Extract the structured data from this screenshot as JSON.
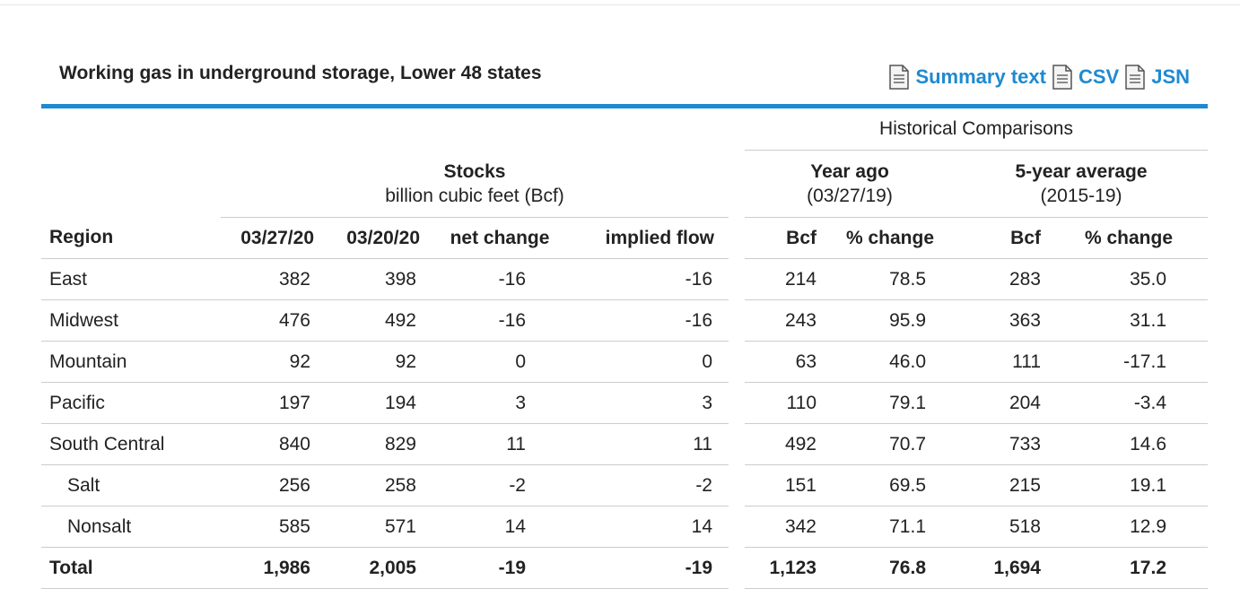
{
  "title": "Working gas in underground storage, Lower 48 states",
  "links": [
    {
      "label": "Summary text",
      "icon": "document-icon"
    },
    {
      "label": "CSV",
      "icon": "document-icon"
    },
    {
      "label": "JSN",
      "icon": "document-icon"
    }
  ],
  "colors": {
    "accent": "#1e8ad0",
    "rule": "#cccccc"
  },
  "table": {
    "historical_label": "Historical Comparisons",
    "stocks_title": "Stocks",
    "stocks_sub": "billion cubic feet (Bcf)",
    "yearago_title": "Year ago",
    "yearago_sub": "(03/27/19)",
    "fiveyr_title": "5-year average",
    "fiveyr_sub": "(2015-19)",
    "columns": [
      "Region",
      "03/27/20",
      "03/20/20",
      "net change",
      "implied flow",
      "Bcf",
      "% change",
      "Bcf",
      "% change"
    ],
    "rows": [
      [
        "East",
        "382",
        "398",
        "-16",
        "-16",
        "214",
        "78.5",
        "283",
        "35.0"
      ],
      [
        "Midwest",
        "476",
        "492",
        "-16",
        "-16",
        "243",
        "95.9",
        "363",
        "31.1"
      ],
      [
        "Mountain",
        "92",
        "92",
        "0",
        "0",
        "63",
        "46.0",
        "111",
        "-17.1"
      ],
      [
        "Pacific",
        "197",
        "194",
        "3",
        "3",
        "110",
        "79.1",
        "204",
        "-3.4"
      ],
      [
        "South Central",
        "840",
        "829",
        "11",
        "11",
        "492",
        "70.7",
        "733",
        "14.6"
      ],
      [
        "Salt",
        "256",
        "258",
        "-2",
        "-2",
        "151",
        "69.5",
        "215",
        "19.1"
      ],
      [
        "Nonsalt",
        "585",
        "571",
        "14",
        "14",
        "342",
        "71.1",
        "518",
        "12.9"
      ],
      [
        "Total",
        "1,986",
        "2,005",
        "-19",
        "-19",
        "1,123",
        "76.8",
        "1,694",
        "17.2"
      ]
    ]
  }
}
